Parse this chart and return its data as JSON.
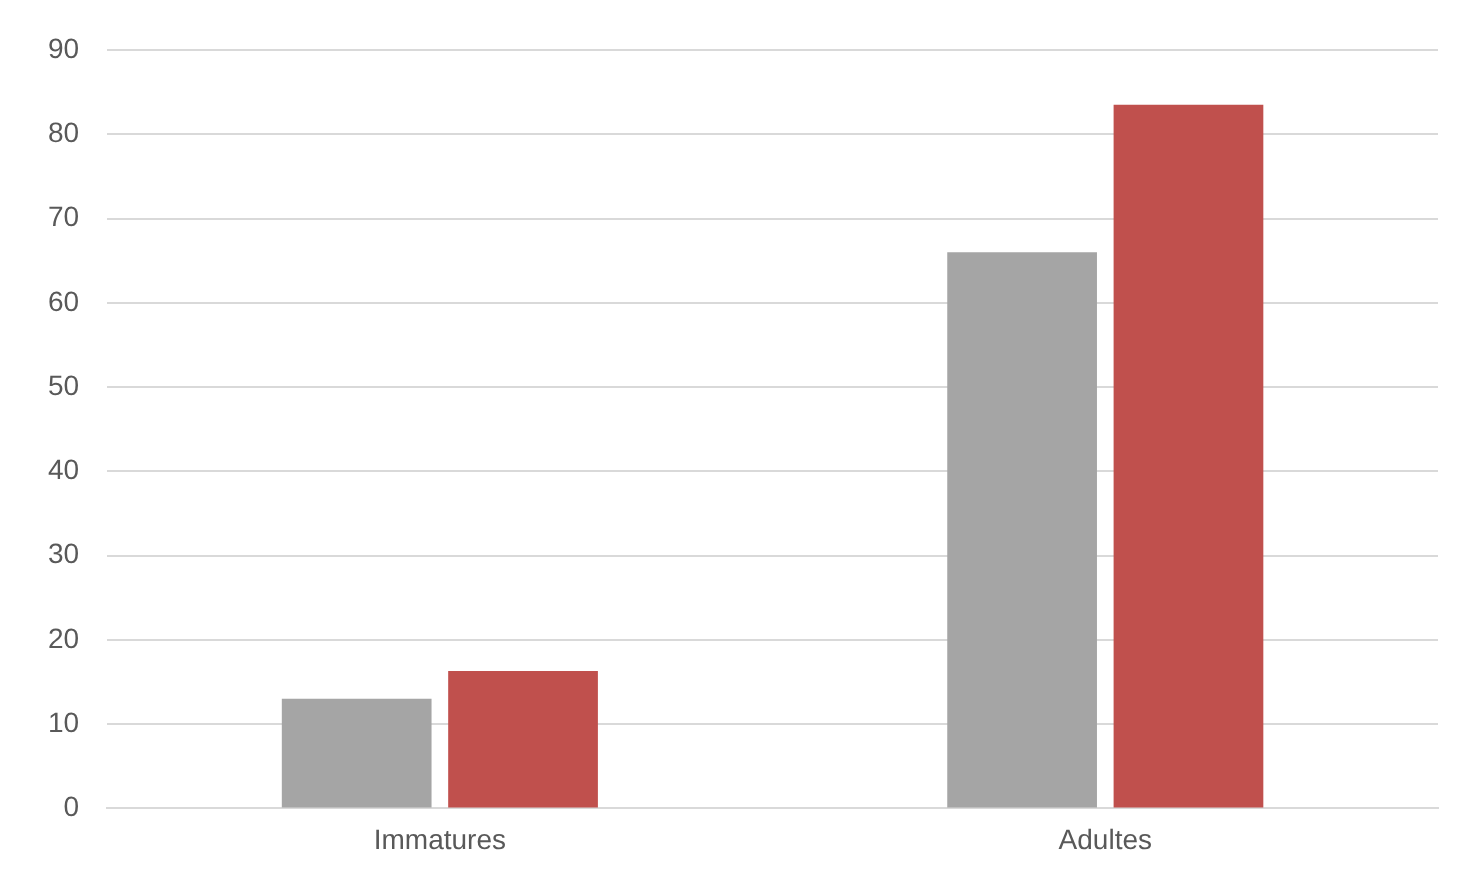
{
  "chart_data": {
    "type": "bar",
    "categories": [
      "Immatures",
      "Adultes"
    ],
    "series": [
      {
        "color": "#a5a5a5",
        "values": [
          13,
          66
        ]
      },
      {
        "color": "#c0504d",
        "values": [
          16.3,
          83.5
        ]
      }
    ],
    "ylim": [
      0,
      90
    ],
    "yticks": [
      0,
      10,
      20,
      30,
      40,
      50,
      60,
      70,
      80,
      90
    ],
    "grid": "y",
    "legend": false
  }
}
